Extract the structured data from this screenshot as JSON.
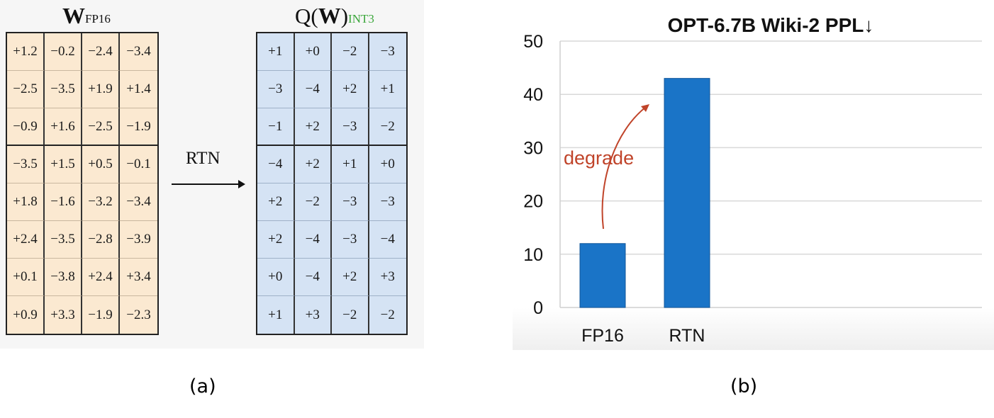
{
  "panel_a": {
    "w_title": {
      "main": "W",
      "sub": "FP16"
    },
    "q_title": {
      "prefix": "Q(",
      "main": "W",
      "suffix": ")",
      "sub": "INT3"
    },
    "operation": "RTN",
    "caption": "(a)",
    "w_matrix": [
      [
        "+1.2",
        "−0.2",
        "−2.4",
        "−3.4"
      ],
      [
        "−2.5",
        "−3.5",
        "+1.9",
        "+1.4"
      ],
      [
        "−0.9",
        "+1.6",
        "−2.5",
        "−1.9"
      ],
      [
        "−3.5",
        "+1.5",
        "+0.5",
        "−0.1"
      ],
      [
        "+1.8",
        "−1.6",
        "−3.2",
        "−3.4"
      ],
      [
        "+2.4",
        "−3.5",
        "−2.8",
        "−3.9"
      ],
      [
        "+0.1",
        "−3.8",
        "+2.4",
        "+3.4"
      ],
      [
        "+0.9",
        "+3.3",
        "−1.9",
        "−2.3"
      ]
    ],
    "q_matrix": [
      [
        "+1",
        "+0",
        "−2",
        "−3"
      ],
      [
        "−3",
        "−4",
        "+2",
        "+1"
      ],
      [
        "−1",
        "+2",
        "−3",
        "−2"
      ],
      [
        "−4",
        "+2",
        "+1",
        "+0"
      ],
      [
        "+2",
        "−2",
        "−3",
        "−3"
      ],
      [
        "+2",
        "−4",
        "−3",
        "−4"
      ],
      [
        "+0",
        "−4",
        "+2",
        "+3"
      ],
      [
        "+1",
        "+3",
        "−2",
        "−2"
      ]
    ],
    "colors": {
      "w_fill": "#fbe9d1",
      "q_fill": "#d5e3f4",
      "int3_text": "#3aa63a"
    }
  },
  "panel_b": {
    "caption": "(b)",
    "chart_data": {
      "type": "bar",
      "title": "OPT-6.7B Wiki-2 PPL↓",
      "categories": [
        "FP16",
        "RTN"
      ],
      "values": [
        12,
        43
      ],
      "ylim": [
        0,
        50
      ],
      "yticks": [
        0,
        10,
        20,
        30,
        40,
        50
      ],
      "grid": true,
      "annotation": {
        "text": "degrade",
        "from": "FP16",
        "to": "RTN"
      },
      "colors": {
        "bar": "#1a74c7",
        "annotation": "#c0442a",
        "grid": "#d9d9d9"
      }
    }
  }
}
